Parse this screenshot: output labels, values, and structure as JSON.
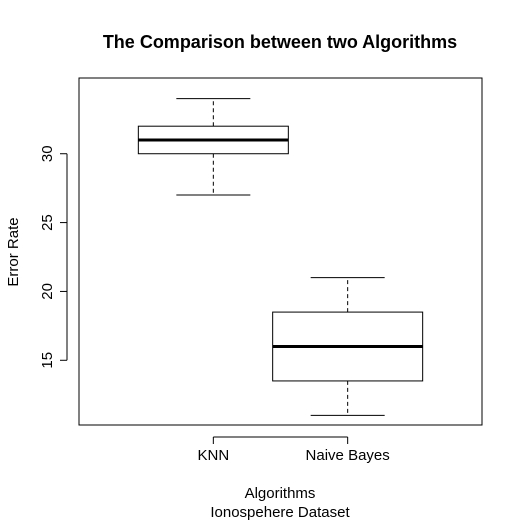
{
  "chart_data": {
    "type": "boxplot",
    "title": "The Comparison between two Algorithms",
    "xlabel": "Algorithms",
    "subtitle": "Ionospehere Dataset",
    "ylabel": "Error Rate",
    "categories": [
      "KNN",
      "Naive Bayes"
    ],
    "series": [
      {
        "min": 27,
        "q1": 30,
        "median": 31,
        "q3": 32,
        "max": 34
      },
      {
        "min": 11,
        "q1": 13.5,
        "median": 16,
        "q3": 18.5,
        "max": 21
      }
    ],
    "yticks": [
      15,
      20,
      25,
      30
    ],
    "ylim": [
      10.3,
      35.5
    ],
    "grid": false
  }
}
